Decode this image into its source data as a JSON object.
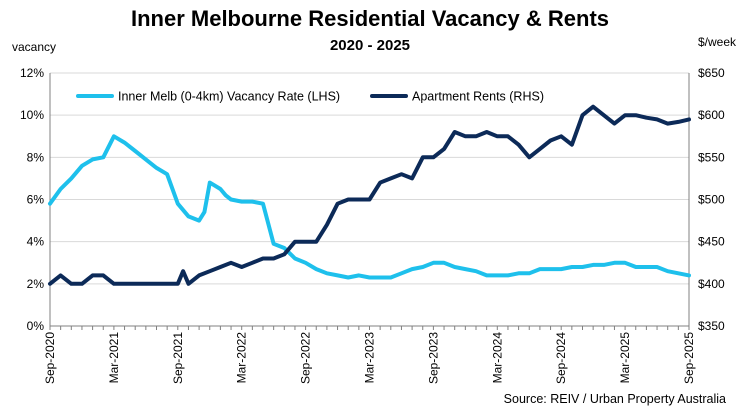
{
  "title": "Inner Melbourne Residential Vacancy & Rents",
  "subtitle": "2020 - 2025",
  "left_axis_unit": "vacancy",
  "right_axis_unit": "$/week",
  "source": "Source: REIV / Urban Property Australia",
  "chart_data": {
    "type": "line",
    "x_tick_labels": [
      "Sep-2020",
      "Mar-2021",
      "Sep-2021",
      "Mar-2022",
      "Sep-2022",
      "Mar-2023",
      "Sep-2023",
      "Mar-2024",
      "Sep-2024",
      "Mar-2025",
      "Sep-2025"
    ],
    "x_range": [
      0,
      60
    ],
    "y_left": {
      "label": "vacancy",
      "range": [
        0,
        12
      ],
      "ticks": [
        0,
        2,
        4,
        6,
        8,
        10,
        12
      ],
      "tick_labels": [
        "0%",
        "2%",
        "4%",
        "6%",
        "8%",
        "10%",
        "12%"
      ]
    },
    "y_right": {
      "label": "$/week",
      "range": [
        350,
        650
      ],
      "ticks": [
        350,
        400,
        450,
        500,
        550,
        600,
        650
      ],
      "tick_labels": [
        "$350",
        "$400",
        "$450",
        "$500",
        "$550",
        "$600",
        "$650"
      ]
    },
    "series": [
      {
        "name": "Inner Melb (0-4km) Vacancy Rate (LHS)",
        "axis": "left",
        "color": "#1ec0ec",
        "x": [
          0,
          1,
          2,
          3,
          4,
          5,
          6,
          7,
          8,
          9,
          10,
          11,
          12,
          13,
          14,
          14.5,
          15,
          16,
          16.5,
          17,
          18,
          19,
          20,
          21,
          22,
          23,
          24,
          25,
          26,
          27,
          28,
          29,
          30,
          31,
          32,
          33,
          34,
          35,
          36,
          37,
          38,
          39,
          40,
          41,
          42,
          43,
          44,
          45,
          46,
          47,
          48,
          49,
          50,
          51,
          52,
          53,
          54,
          55,
          56,
          57,
          58,
          59,
          60
        ],
        "values": [
          5.8,
          6.5,
          7.0,
          7.6,
          7.9,
          8.0,
          9.0,
          8.7,
          8.3,
          7.9,
          7.5,
          7.2,
          5.8,
          5.2,
          5.0,
          5.4,
          6.8,
          6.5,
          6.2,
          6.0,
          5.9,
          5.9,
          5.8,
          3.9,
          3.7,
          3.2,
          3.0,
          2.7,
          2.5,
          2.4,
          2.3,
          2.4,
          2.3,
          2.3,
          2.3,
          2.5,
          2.7,
          2.8,
          3.0,
          3.0,
          2.8,
          2.7,
          2.6,
          2.4,
          2.4,
          2.4,
          2.5,
          2.5,
          2.7,
          2.7,
          2.7,
          2.8,
          2.8,
          2.9,
          2.9,
          3.0,
          3.0,
          2.8,
          2.8,
          2.8,
          2.6,
          2.5,
          2.4
        ]
      },
      {
        "name": "Apartment Rents (RHS)",
        "axis": "right",
        "color": "#0c2a58",
        "x": [
          0,
          1,
          2,
          3,
          4,
          5,
          6,
          7,
          8,
          9,
          10,
          11,
          12,
          12.5,
          13,
          14,
          15,
          16,
          17,
          18,
          19,
          20,
          21,
          22,
          23,
          24,
          25,
          26,
          27,
          28,
          29,
          30,
          31,
          32,
          33,
          34,
          35,
          36,
          37,
          38,
          39,
          40,
          41,
          42,
          43,
          44,
          45,
          46,
          47,
          48,
          49,
          50,
          51,
          52,
          53,
          54,
          55,
          56,
          57,
          58,
          59,
          60
        ],
        "values": [
          400,
          410,
          400,
          400,
          410,
          410,
          400,
          400,
          400,
          400,
          400,
          400,
          400,
          415,
          400,
          410,
          415,
          420,
          425,
          420,
          425,
          430,
          430,
          435,
          450,
          450,
          450,
          470,
          495,
          500,
          500,
          500,
          520,
          525,
          530,
          525,
          550,
          550,
          560,
          580,
          575,
          575,
          580,
          575,
          575,
          565,
          550,
          560,
          570,
          575,
          565,
          600,
          610,
          600,
          590,
          600,
          600,
          597,
          595,
          590,
          592,
          595
        ]
      }
    ],
    "legend": {
      "position": "top"
    }
  }
}
